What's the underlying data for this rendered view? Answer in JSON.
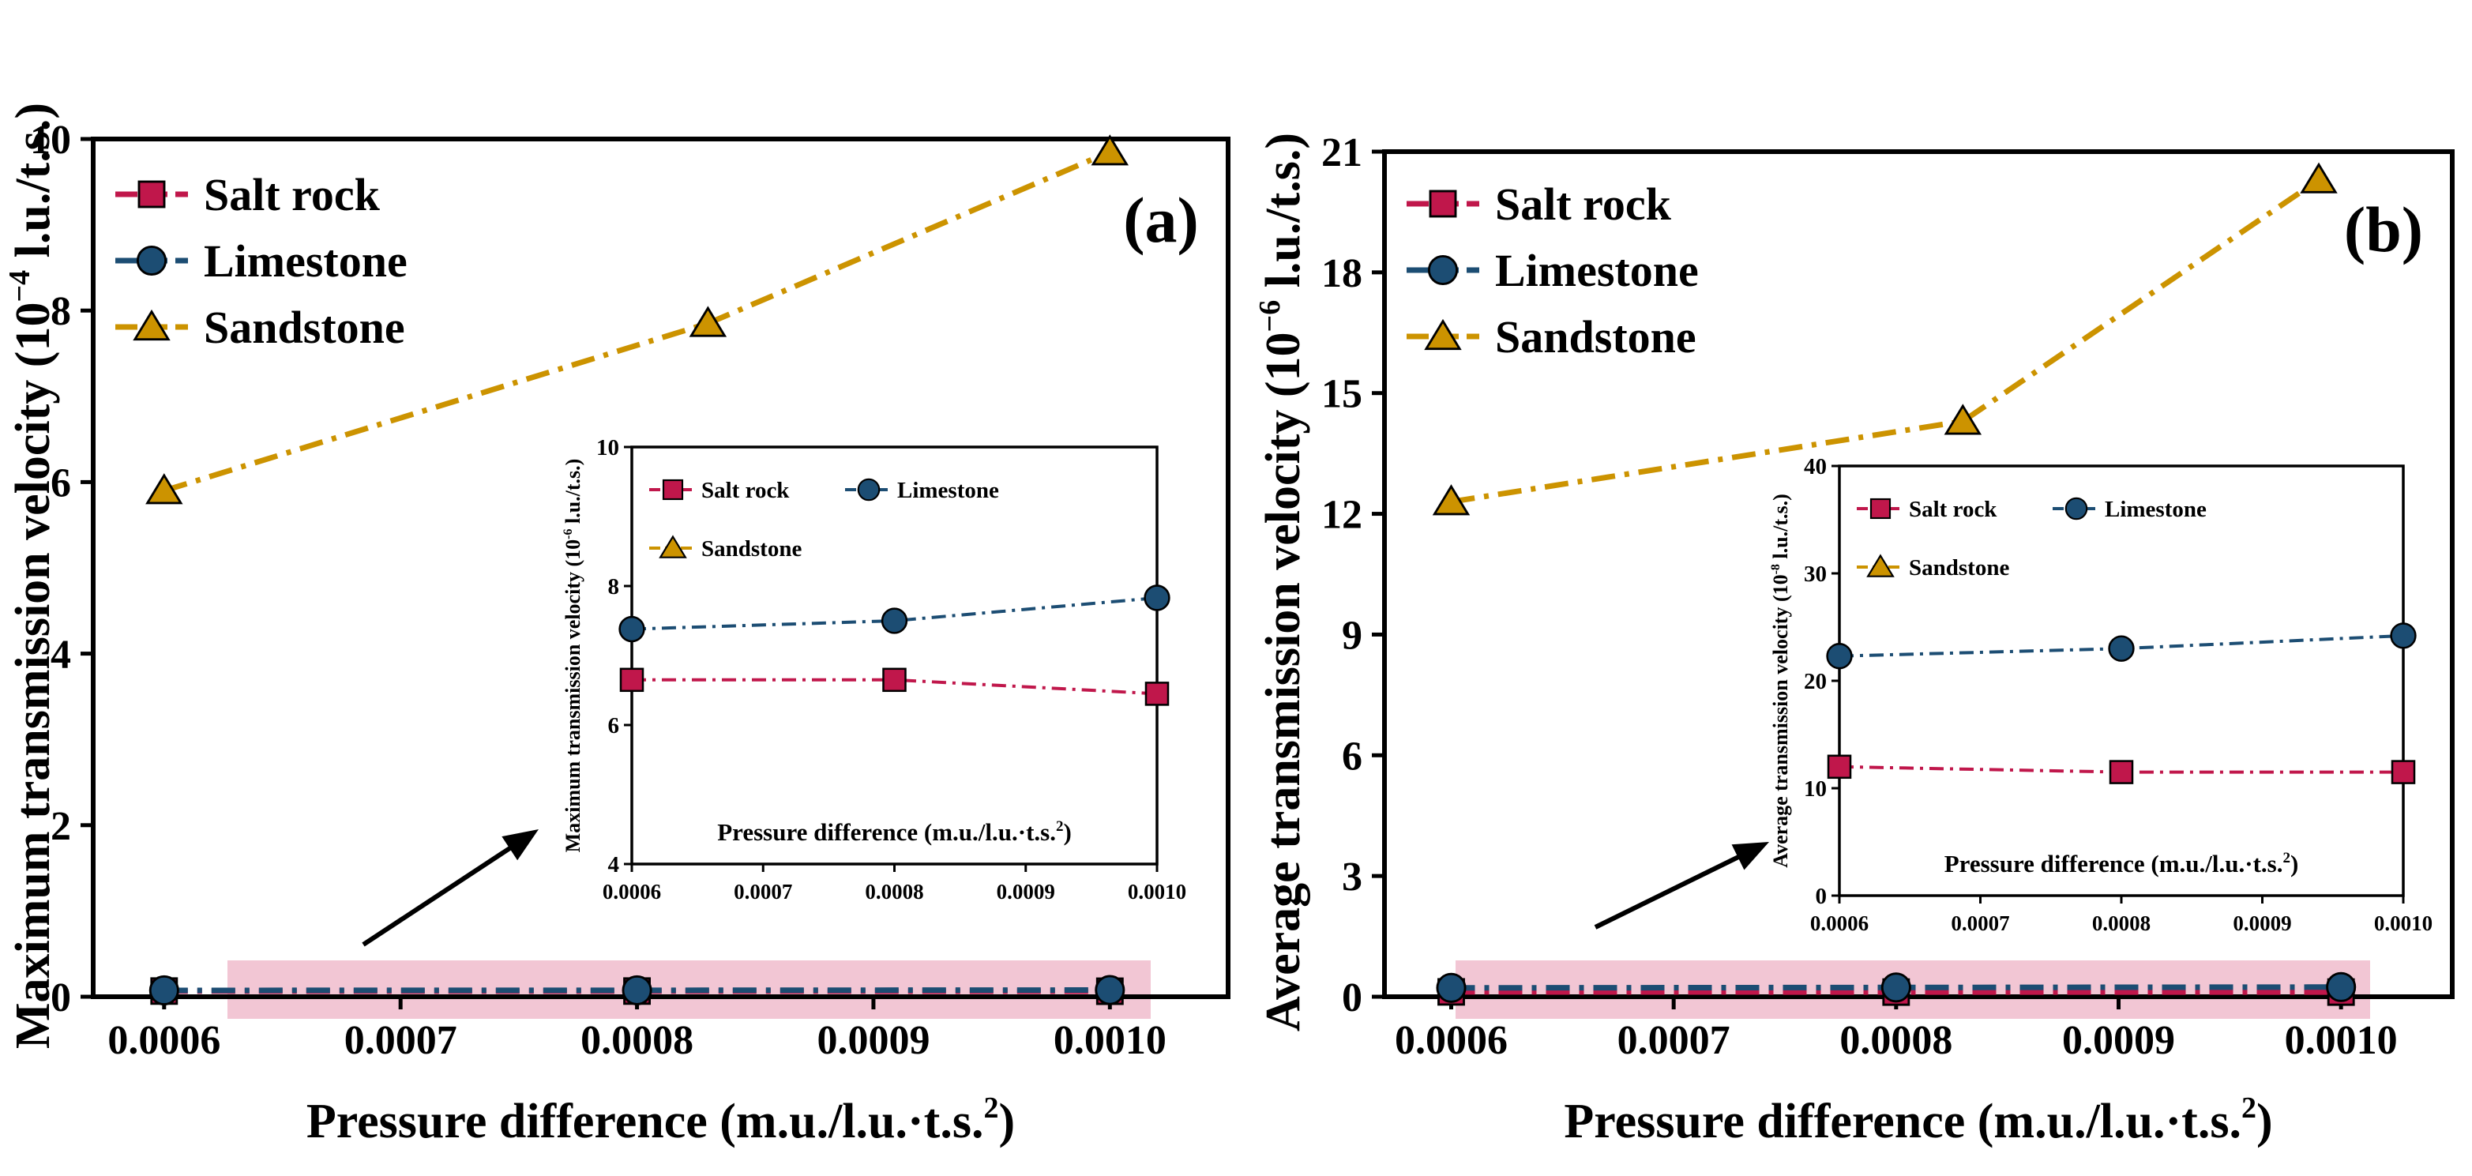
{
  "colors": {
    "salt": "#c0174b",
    "lime": "#1c4d73",
    "sand": "#cc9300",
    "highlight": "#f2c6d4"
  },
  "chart_data": [
    {
      "id": "a",
      "type": "line",
      "panel_label": "(a)",
      "xlabel": "Pressure difference (m.u./l.u.·t.s.",
      "xlabel_sup": "2",
      "xlabel_end": ")",
      "ylabel": "Maximum transmission velocity (10",
      "ylabel_sup": "−4",
      "ylabel_end": " l.u./t.s.)",
      "xlim": [
        0.00057,
        0.00105
      ],
      "ylim": [
        0,
        10
      ],
      "xticks": [
        0.0006,
        0.0007,
        0.0008,
        0.0009,
        0.001
      ],
      "xtick_labels": [
        "0.0006",
        "0.0007",
        "0.0008",
        "0.0009",
        "0.0010"
      ],
      "yticks": [
        0,
        2,
        4,
        6,
        8,
        10
      ],
      "ytick_labels": [
        "0",
        "2",
        "4",
        "6",
        "8",
        "10"
      ],
      "series": [
        {
          "name": "Salt rock",
          "marker": "square",
          "x": [
            0.0006,
            0.0008,
            0.001
          ],
          "values": [
            0.066,
            0.066,
            0.064
          ]
        },
        {
          "name": "Limestone",
          "marker": "circle",
          "x": [
            0.0006,
            0.0008,
            0.001
          ],
          "values": [
            0.074,
            0.075,
            0.078
          ]
        },
        {
          "name": "Sandstone",
          "marker": "triangle",
          "x": [
            0.0006,
            0.00083,
            0.001
          ],
          "values": [
            5.9,
            7.85,
            9.85
          ]
        }
      ],
      "inset": {
        "xlabel": "Pressure difference (m.u./l.u.·t.s.",
        "xlabel_sup": "2",
        "xlabel_end": ")",
        "ylabel": "Maximum transmission velocity (10",
        "ylabel_sup": "-6",
        "ylabel_end": " l.u./t.s.)",
        "xlim": [
          0.0006,
          0.001
        ],
        "ylim": [
          4,
          10
        ],
        "xticks": [
          0.0006,
          0.0007,
          0.0008,
          0.0009,
          0.001
        ],
        "xtick_labels": [
          "0.0006",
          "0.0007",
          "0.0008",
          "0.0009",
          "0.0010"
        ],
        "yticks": [
          4,
          6,
          8,
          10
        ],
        "ytick_labels": [
          "4",
          "6",
          "8",
          "10"
        ],
        "series": [
          {
            "name": "Salt rock",
            "marker": "square",
            "x": [
              0.0006,
              0.0008,
              0.001
            ],
            "values": [
              6.65,
              6.65,
              6.45
            ]
          },
          {
            "name": "Limestone",
            "marker": "circle",
            "x": [
              0.0006,
              0.0008,
              0.001
            ],
            "values": [
              7.38,
              7.5,
              7.83
            ]
          }
        ],
        "legend": [
          "Salt rock",
          "Limestone",
          "Sandstone"
        ]
      }
    },
    {
      "id": "b",
      "type": "line",
      "panel_label": "(b)",
      "xlabel": "Pressure difference (m.u./l.u.·t.s.",
      "xlabel_sup": "2",
      "xlabel_end": ")",
      "ylabel": "Average transmission velocity (10",
      "ylabel_sup": "−6",
      "ylabel_end": " l.u./t.s.)",
      "xlim": [
        0.00057,
        0.00105
      ],
      "ylim": [
        0,
        21
      ],
      "xticks": [
        0.0006,
        0.0007,
        0.0008,
        0.0009,
        0.001
      ],
      "xtick_labels": [
        "0.0006",
        "0.0007",
        "0.0008",
        "0.0009",
        "0.0010"
      ],
      "yticks": [
        0,
        3,
        6,
        9,
        12,
        15,
        18,
        21
      ],
      "ytick_labels": [
        "0",
        "3",
        "6",
        "9",
        "12",
        "15",
        "18",
        "21"
      ],
      "series": [
        {
          "name": "Salt rock",
          "marker": "square",
          "x": [
            0.0006,
            0.0008,
            0.001
          ],
          "values": [
            0.12,
            0.115,
            0.115
          ]
        },
        {
          "name": "Limestone",
          "marker": "circle",
          "x": [
            0.0006,
            0.0008,
            0.001
          ],
          "values": [
            0.22,
            0.23,
            0.24
          ]
        },
        {
          "name": "Sandstone",
          "marker": "triangle",
          "x": [
            0.0006,
            0.00083,
            0.00099
          ],
          "values": [
            12.3,
            14.3,
            20.3
          ]
        }
      ],
      "inset": {
        "xlabel": "Pressure difference (m.u./l.u.·t.s.",
        "xlabel_sup": "2",
        "xlabel_end": ")",
        "ylabel": "Average transmission velocity (10",
        "ylabel_sup": "-8",
        "ylabel_end": " l.u./t.s.)",
        "xlim": [
          0.0006,
          0.001
        ],
        "ylim": [
          0,
          40
        ],
        "xticks": [
          0.0006,
          0.0007,
          0.0008,
          0.0009,
          0.001
        ],
        "xtick_labels": [
          "0.0006",
          "0.0007",
          "0.0008",
          "0.0009",
          "0.0010"
        ],
        "yticks": [
          0,
          10,
          20,
          30,
          40
        ],
        "ytick_labels": [
          "0",
          "10",
          "20",
          "30",
          "40"
        ],
        "series": [
          {
            "name": "Salt rock",
            "marker": "square",
            "x": [
              0.0006,
              0.0008,
              0.001
            ],
            "values": [
              12.0,
              11.5,
              11.5
            ]
          },
          {
            "name": "Limestone",
            "marker": "circle",
            "x": [
              0.0006,
              0.0008,
              0.001
            ],
            "values": [
              22.3,
              23.0,
              24.2
            ]
          }
        ],
        "legend": [
          "Salt rock",
          "Limestone",
          "Sandstone"
        ]
      }
    }
  ]
}
